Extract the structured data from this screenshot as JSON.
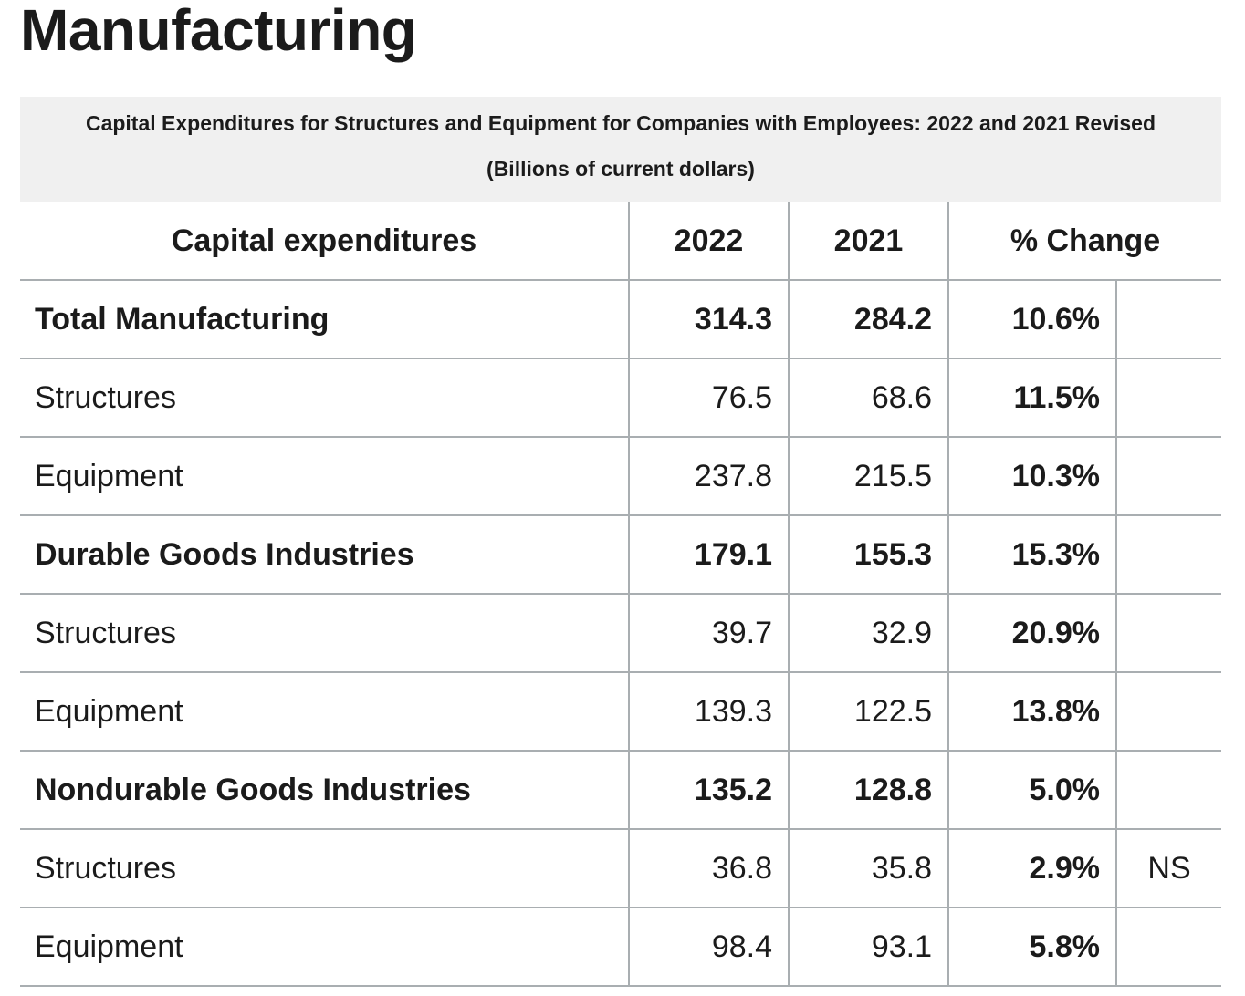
{
  "page_title": "Manufacturing",
  "caption": {
    "title": "Capital Expenditures for Structures and Equipment for Companies with Employees: 2022 and 2021 Revised",
    "subtitle": "(Billions of current dollars)"
  },
  "table": {
    "headers": {
      "label": "Capital expenditures",
      "y2022": "2022",
      "y2021": "2021",
      "change": "% Change"
    },
    "rows": [
      {
        "label": "Total Manufacturing",
        "y2022": "314.3",
        "y2021": "284.2",
        "change": "10.6%",
        "note": "",
        "group": true
      },
      {
        "label": "Structures",
        "y2022": "76.5",
        "y2021": "68.6",
        "change": "11.5%",
        "note": "",
        "group": false
      },
      {
        "label": "Equipment",
        "y2022": "237.8",
        "y2021": "215.5",
        "change": "10.3%",
        "note": "",
        "group": false
      },
      {
        "label": "Durable Goods Industries",
        "y2022": "179.1",
        "y2021": "155.3",
        "change": "15.3%",
        "note": "",
        "group": true
      },
      {
        "label": "Structures",
        "y2022": "39.7",
        "y2021": "32.9",
        "change": "20.9%",
        "note": "",
        "group": false
      },
      {
        "label": "Equipment",
        "y2022": "139.3",
        "y2021": "122.5",
        "change": "13.8%",
        "note": "",
        "group": false
      },
      {
        "label": "Nondurable Goods Industries",
        "y2022": "135.2",
        "y2021": "128.8",
        "change": "5.0%",
        "note": "",
        "group": true
      },
      {
        "label": "Structures",
        "y2022": "36.8",
        "y2021": "35.8",
        "change": "2.9%",
        "note": "NS",
        "group": false
      },
      {
        "label": "Equipment",
        "y2022": "98.4",
        "y2021": "93.1",
        "change": "5.8%",
        "note": "",
        "group": false
      }
    ]
  }
}
